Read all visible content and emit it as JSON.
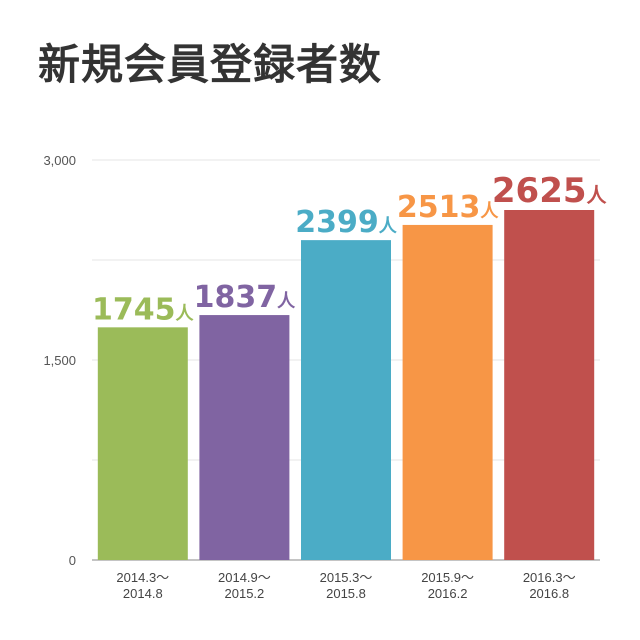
{
  "chart_data": {
    "type": "bar",
    "title": "新規会員登録者数",
    "xlabel": "",
    "ylabel": "",
    "ylim": [
      0,
      3000
    ],
    "yticks": [
      "0",
      "1,500",
      "3,000"
    ],
    "grid": true,
    "categories": [
      [
        "2014.3～",
        "2014.8"
      ],
      [
        "2014.9～",
        "2015.2"
      ],
      [
        "2015.3～",
        "2015.8"
      ],
      [
        "2015.9～",
        "2016.2"
      ],
      [
        "2016.3～",
        "2016.8"
      ]
    ],
    "values": [
      1745,
      1837,
      2399,
      2513,
      2625
    ],
    "value_labels": [
      "1745",
      "1837",
      "2399",
      "2513",
      "2625"
    ],
    "unit": "人",
    "colors": [
      "#9bbb59",
      "#8064a2",
      "#4bacc6",
      "#f79646",
      "#c0504d"
    ]
  }
}
